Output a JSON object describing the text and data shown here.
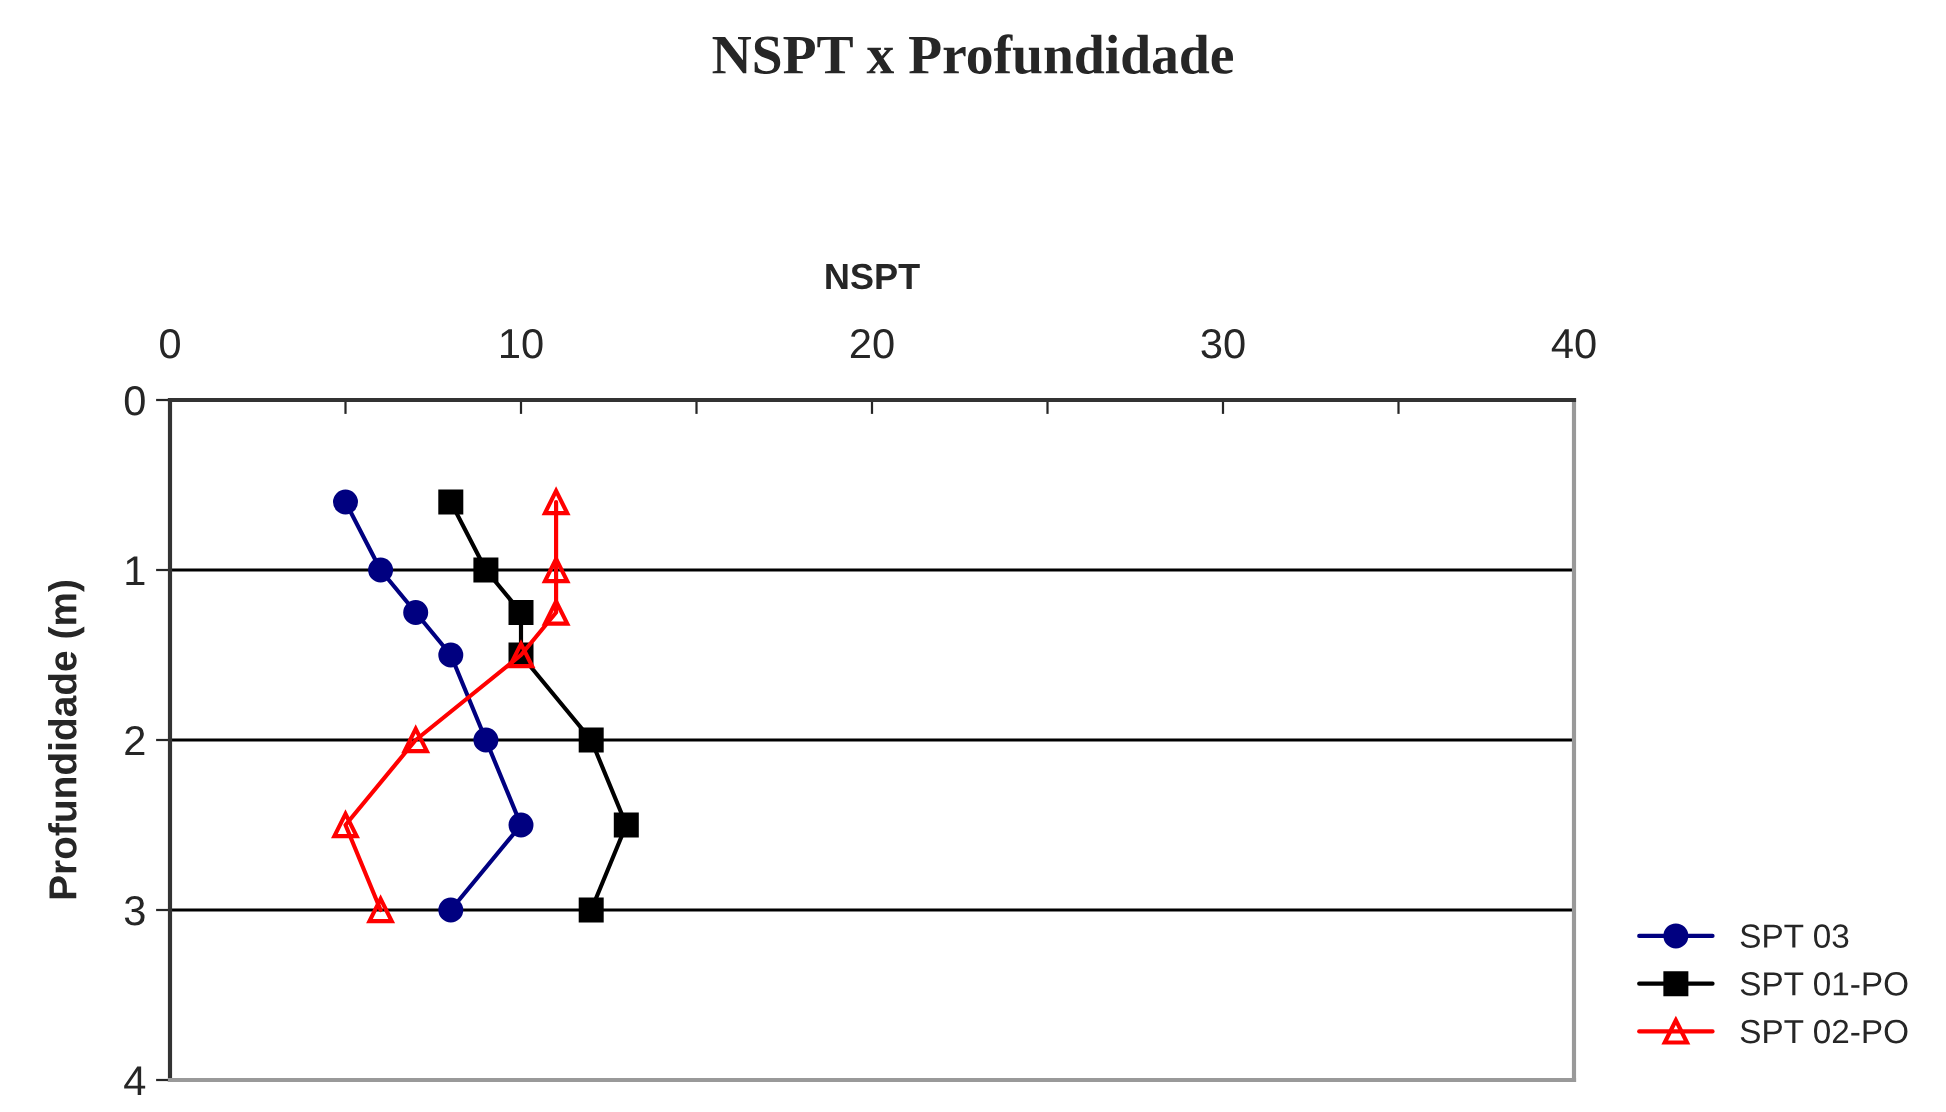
{
  "chart_data": {
    "type": "line",
    "title": "NSPT x Profundidade",
    "xlabel": "NSPT",
    "ylabel": "Profundidade (m)",
    "xlim": [
      0,
      40
    ],
    "xticks": [
      0,
      {
        "value": 5,
        "label": null
      },
      10,
      {
        "value": 15,
        "label": null
      },
      20,
      {
        "value": 25,
        "label": null
      },
      30,
      {
        "value": 35,
        "label": null
      },
      40
    ],
    "ylim": [
      4,
      0
    ],
    "yticks": [
      0,
      1,
      2,
      3,
      4
    ],
    "grid": "y",
    "legend": "bottom right",
    "series": [
      {
        "name": "SPT 03",
        "color": "#000080",
        "marker": "circle",
        "x": [
          5,
          6,
          7,
          8,
          9,
          10,
          8
        ],
        "values": [
          0.6,
          1.0,
          1.25,
          1.5,
          2.0,
          2.5,
          3.0
        ]
      },
      {
        "name": "SPT 01-PO",
        "color": "#000000",
        "marker": "square",
        "x": [
          8,
          9,
          10,
          10,
          12,
          13,
          12
        ],
        "values": [
          0.6,
          1.0,
          1.25,
          1.5,
          2.0,
          2.5,
          3.0
        ]
      },
      {
        "name": "SPT 02-PO",
        "color": "#ff0000",
        "marker": "triangle",
        "x": [
          11,
          11,
          11,
          10,
          7,
          5,
          6
        ],
        "values": [
          0.6,
          1.0,
          1.25,
          1.5,
          2.0,
          2.5,
          3.0
        ]
      }
    ]
  }
}
